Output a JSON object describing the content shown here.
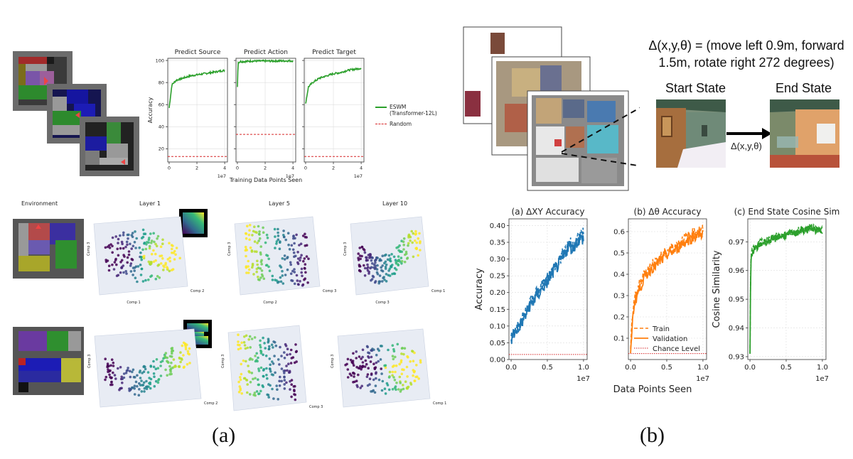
{
  "panels": {
    "a_label": "(a)",
    "b_label": "(b)"
  },
  "left_top": {
    "ylabel": "Accuracy",
    "xlabel": "Training Data Points Seen",
    "exponent": "1e7",
    "legend": [
      {
        "label": "ESWM\n(Transformer-12L)",
        "color": "#2ca02c",
        "style": "solid"
      },
      {
        "label": "Random",
        "color": "#d62728",
        "style": "dashed"
      }
    ]
  },
  "embeddings": {
    "environment_label": "Environment",
    "layer_titles": [
      "Layer 1",
      "Layer 5",
      "Layer 10"
    ]
  },
  "right": {
    "equation_line1": "Δ(x,y,θ) = (move left 0.9m, forward",
    "equation_line2": "1.5m, rotate right 272 degrees)",
    "start_state": "Start State",
    "end_state": "End State",
    "arrow_label": "Δ(x,y,θ)",
    "shared_xlabel": "Data Points Seen",
    "exponent": "1e7"
  },
  "chart_data": [
    {
      "type": "line",
      "title": "Predict Source",
      "x": [
        0,
        0.2,
        0.5,
        1,
        1.5,
        2,
        2.5,
        3,
        3.5,
        4
      ],
      "series": [
        {
          "name": "ESWM (Transformer-12L)",
          "values": [
            57,
            78,
            82,
            84,
            86,
            87,
            88,
            89,
            90,
            91
          ]
        },
        {
          "name": "Random",
          "values": [
            13,
            13,
            13,
            13,
            13,
            13,
            13,
            13,
            13,
            13
          ]
        }
      ],
      "xlim": [
        -0.1,
        4.2
      ],
      "ylim": [
        8,
        102
      ],
      "xticks": [
        0,
        2,
        4
      ],
      "yticks": [
        20,
        40,
        60,
        80,
        100
      ],
      "grid": true
    },
    {
      "type": "line",
      "title": "Predict Action",
      "x": [
        0,
        0.05,
        0.2,
        0.5,
        1,
        1.5,
        2,
        2.5,
        3,
        3.5,
        4
      ],
      "series": [
        {
          "name": "ESWM (Transformer-12L)",
          "values": [
            76,
            98,
            99,
            99,
            99.5,
            99.5,
            99.5,
            99.5,
            99.6,
            99.6,
            99.6
          ]
        },
        {
          "name": "Random",
          "values": [
            33,
            33,
            33,
            33,
            33,
            33,
            33,
            33,
            33,
            33,
            33
          ]
        }
      ],
      "xlim": [
        -0.1,
        4.2
      ],
      "ylim": [
        8,
        102
      ],
      "xticks": [
        0,
        2,
        4
      ],
      "yticks": [
        20,
        40,
        60,
        80,
        100
      ],
      "grid": true
    },
    {
      "type": "line",
      "title": "Predict Target",
      "x": [
        0,
        0.2,
        0.5,
        1,
        1.5,
        2,
        2.5,
        3,
        3.5,
        4
      ],
      "series": [
        {
          "name": "ESWM (Transformer-12L)",
          "values": [
            61,
            76,
            80,
            84,
            86,
            88,
            89,
            91,
            92,
            93
          ]
        },
        {
          "name": "Random",
          "values": [
            13,
            13,
            13,
            13,
            13,
            13,
            13,
            13,
            13,
            13
          ]
        }
      ],
      "xlim": [
        -0.1,
        4.2
      ],
      "ylim": [
        8,
        102
      ],
      "xticks": [
        0,
        2,
        4
      ],
      "yticks": [
        20,
        40,
        60,
        80,
        100
      ],
      "grid": true
    },
    {
      "type": "line",
      "title": "(a) ΔXY Accuracy",
      "ylabel": "Accuracy",
      "x": [
        0,
        0.5,
        1,
        1.5,
        2,
        2.5,
        3,
        3.5,
        4,
        4.5,
        5,
        5.5,
        6,
        6.5,
        7,
        7.5,
        8,
        8.5,
        9,
        9.5,
        10
      ],
      "series": [
        {
          "name": "Train",
          "values": [
            0.07,
            0.09,
            0.1,
            0.12,
            0.14,
            0.17,
            0.18,
            0.2,
            0.21,
            0.23,
            0.24,
            0.26,
            0.28,
            0.29,
            0.31,
            0.33,
            0.35,
            0.34,
            0.36,
            0.37,
            0.38
          ]
        },
        {
          "name": "Validation",
          "values": [
            0.06,
            0.08,
            0.1,
            0.11,
            0.13,
            0.16,
            0.17,
            0.19,
            0.2,
            0.22,
            0.23,
            0.25,
            0.27,
            0.28,
            0.3,
            0.32,
            0.34,
            0.33,
            0.35,
            0.36,
            0.36
          ]
        },
        {
          "name": "Chance Level",
          "values": [
            0.015,
            0.015,
            0.015,
            0.015,
            0.015,
            0.015,
            0.015,
            0.015,
            0.015,
            0.015,
            0.015,
            0.015,
            0.015,
            0.015,
            0.015,
            0.015,
            0.015,
            0.015,
            0.015,
            0.015,
            0.015
          ]
        }
      ],
      "color": "#1f77b4",
      "xlim": [
        -0.3,
        10.5
      ],
      "ylim": [
        0,
        0.42
      ],
      "xticks": [
        0,
        0.5,
        1
      ],
      "yticks": [
        0,
        0.05,
        0.1,
        0.15,
        0.2,
        0.25,
        0.3,
        0.35,
        0.4
      ],
      "ytick_labels": [
        "0.00",
        "0.05",
        "0.10",
        "0.15",
        "0.20",
        "0.25",
        "0.30",
        "0.35",
        "0.40"
      ],
      "xtick_labels": [
        "0.0",
        "0.5",
        "1.0"
      ],
      "grid": true
    },
    {
      "type": "line",
      "title": "(b) Δθ Accuracy",
      "x": [
        0,
        0.2,
        0.5,
        1,
        1.5,
        2,
        2.5,
        3,
        3.5,
        4,
        4.5,
        5,
        5.5,
        6,
        6.5,
        7,
        7.5,
        8,
        8.5,
        9,
        9.5,
        10
      ],
      "series": [
        {
          "name": "Train",
          "values": [
            0.05,
            0.18,
            0.28,
            0.33,
            0.37,
            0.41,
            0.43,
            0.45,
            0.46,
            0.48,
            0.49,
            0.51,
            0.52,
            0.53,
            0.54,
            0.56,
            0.57,
            0.58,
            0.59,
            0.6,
            0.61,
            0.61
          ]
        },
        {
          "name": "Validation",
          "values": [
            0.03,
            0.15,
            0.26,
            0.31,
            0.35,
            0.39,
            0.41,
            0.43,
            0.44,
            0.46,
            0.47,
            0.49,
            0.5,
            0.51,
            0.52,
            0.54,
            0.55,
            0.56,
            0.57,
            0.58,
            0.59,
            0.59
          ]
        },
        {
          "name": "Chance Level",
          "values": [
            0.028,
            0.028,
            0.028,
            0.028,
            0.028,
            0.028,
            0.028,
            0.028,
            0.028,
            0.028,
            0.028,
            0.028,
            0.028,
            0.028,
            0.028,
            0.028,
            0.028,
            0.028,
            0.028,
            0.028,
            0.028,
            0.028
          ]
        }
      ],
      "color": "#ff7f0e",
      "xlim": [
        -0.3,
        10.5
      ],
      "ylim": [
        0,
        0.66
      ],
      "xticks": [
        0,
        0.5,
        1
      ],
      "yticks": [
        0.1,
        0.2,
        0.3,
        0.4,
        0.5,
        0.6
      ],
      "ytick_labels": [
        "0.1",
        "0.2",
        "0.3",
        "0.4",
        "0.5",
        "0.6"
      ],
      "xtick_labels": [
        "0.0",
        "0.5",
        "1.0"
      ],
      "grid": true,
      "legend": [
        "Train",
        "Validation",
        "Chance Level"
      ]
    },
    {
      "type": "line",
      "title": "(c) End State Cosine Sim",
      "ylabel": "Cosine Similarity",
      "x": [
        0,
        0.1,
        0.2,
        0.5,
        1,
        1.5,
        2,
        2.5,
        3,
        3.5,
        4,
        4.5,
        5,
        5.5,
        6,
        6.5,
        7,
        7.5,
        8,
        8.5,
        9,
        9.5,
        10
      ],
      "series": [
        {
          "name": "Train",
          "values": [
            0.931,
            0.962,
            0.966,
            0.968,
            0.969,
            0.97,
            0.97,
            0.971,
            0.971,
            0.972,
            0.972,
            0.972,
            0.973,
            0.973,
            0.973,
            0.974,
            0.974,
            0.974,
            0.975,
            0.975,
            0.975,
            0.974,
            0.974
          ]
        },
        {
          "name": "Validation",
          "values": [
            0.931,
            0.961,
            0.965,
            0.967,
            0.968,
            0.969,
            0.97,
            0.97,
            0.971,
            0.971,
            0.972,
            0.972,
            0.972,
            0.973,
            0.973,
            0.973,
            0.974,
            0.974,
            0.974,
            0.975,
            0.974,
            0.974,
            0.974
          ]
        }
      ],
      "color": "#2ca02c",
      "xlim": [
        -0.3,
        10.5
      ],
      "ylim": [
        0.929,
        0.978
      ],
      "xticks": [
        0,
        0.5,
        1
      ],
      "yticks": [
        0.93,
        0.94,
        0.95,
        0.96,
        0.97
      ],
      "ytick_labels": [
        "0.93",
        "0.94",
        "0.95",
        "0.96",
        "0.97"
      ],
      "xtick_labels": [
        "0.0",
        "0.5",
        "1.0"
      ],
      "grid": true
    }
  ]
}
